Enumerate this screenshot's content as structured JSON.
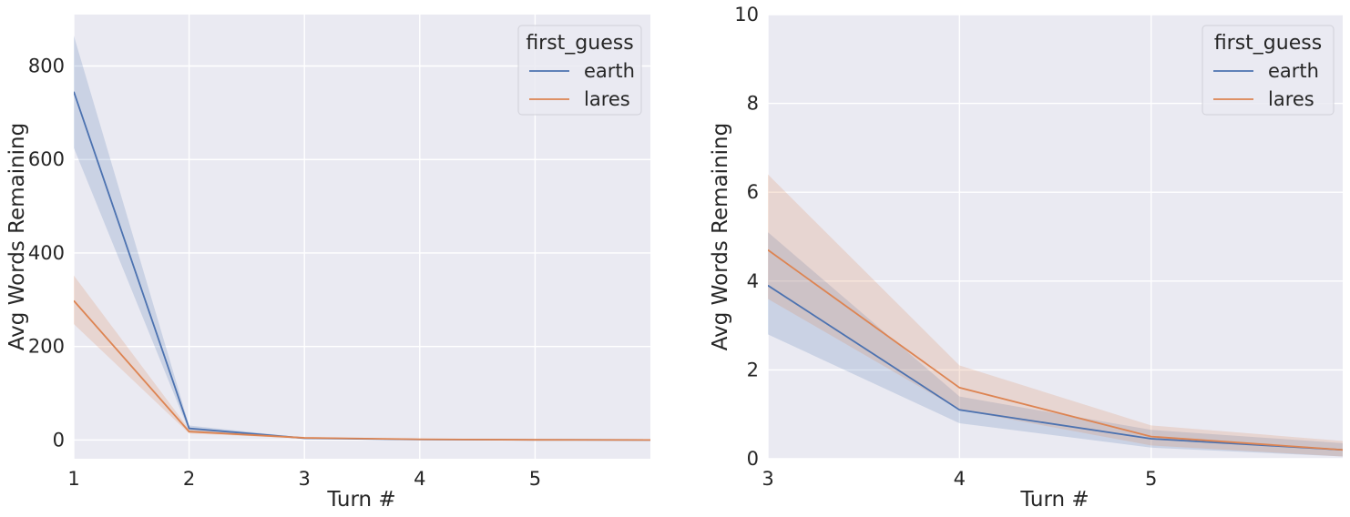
{
  "chart_data": [
    {
      "type": "line",
      "xlabel": "Turn #",
      "ylabel": "Avg Words Remaining",
      "xlim": [
        1,
        6
      ],
      "ylim": [
        -40,
        910
      ],
      "xticks": [
        1,
        2,
        3,
        4,
        5
      ],
      "xtick_labels": [
        "1",
        "2",
        "3",
        "4",
        "5"
      ],
      "yticks": [
        0,
        200,
        400,
        600,
        800
      ],
      "ytick_labels": [
        "0",
        "200",
        "400",
        "600",
        "800"
      ],
      "grid": true,
      "legend": {
        "title": "first_guess",
        "placement": "top-right"
      },
      "x": [
        1,
        2,
        3,
        4,
        5,
        6
      ],
      "series": [
        {
          "name": "earth",
          "color": "#4c72b0",
          "values": [
            745,
            25,
            3.9,
            1.1,
            0.45,
            0.2
          ],
          "ci_low": [
            625,
            19,
            2.8,
            0.8,
            0.25,
            0.05
          ],
          "ci_high": [
            865,
            31,
            5.1,
            1.4,
            0.65,
            0.35
          ]
        },
        {
          "name": "lares",
          "color": "#dd8452",
          "values": [
            298,
            18,
            4.7,
            1.6,
            0.5,
            0.2
          ],
          "ci_low": [
            248,
            14,
            3.6,
            1.1,
            0.3,
            0.05
          ],
          "ci_high": [
            352,
            23,
            6.4,
            2.1,
            0.75,
            0.4
          ]
        }
      ]
    },
    {
      "type": "line",
      "xlabel": "Turn #",
      "ylabel": "Avg Words Remaining",
      "xlim": [
        3,
        6
      ],
      "ylim": [
        0,
        10
      ],
      "xticks": [
        3,
        4,
        5
      ],
      "xtick_labels": [
        "3",
        "4",
        "5"
      ],
      "yticks": [
        0,
        2,
        4,
        6,
        8,
        10
      ],
      "ytick_labels": [
        "0",
        "2",
        "4",
        "6",
        "8",
        "10"
      ],
      "grid": true,
      "legend": {
        "title": "first_guess",
        "placement": "top-right"
      },
      "x": [
        3,
        4,
        5,
        6
      ],
      "series": [
        {
          "name": "earth",
          "color": "#4c72b0",
          "values": [
            3.9,
            1.1,
            0.45,
            0.2
          ],
          "ci_low": [
            2.8,
            0.8,
            0.25,
            0.05
          ],
          "ci_high": [
            5.1,
            1.4,
            0.65,
            0.35
          ]
        },
        {
          "name": "lares",
          "color": "#dd8452",
          "values": [
            4.7,
            1.6,
            0.5,
            0.2
          ],
          "ci_low": [
            3.6,
            1.1,
            0.3,
            0.05
          ],
          "ci_high": [
            6.4,
            2.1,
            0.75,
            0.4
          ]
        }
      ]
    }
  ]
}
